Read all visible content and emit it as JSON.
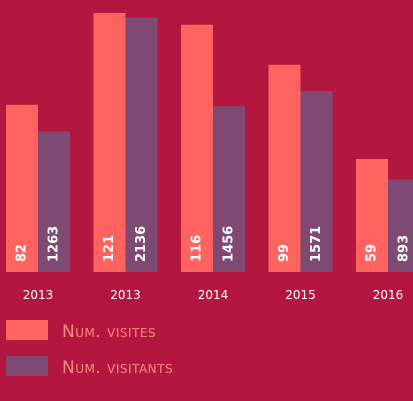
{
  "chart_data": {
    "type": "bar",
    "categories": [
      "2013",
      "2013",
      "2014",
      "2015",
      "2016"
    ],
    "series": [
      {
        "name": "Num. visites",
        "color": "#ff6360",
        "values": [
          82,
          121,
          116,
          99,
          59
        ]
      },
      {
        "name": "Num. visitants",
        "color": "#7e4a73",
        "axis": "y2",
        "values": [
          1263,
          2136,
          1456,
          1571,
          893
        ]
      }
    ],
    "ylim": [
      11,
      121
    ],
    "y2lim": [
      184,
      2172
    ]
  }
}
